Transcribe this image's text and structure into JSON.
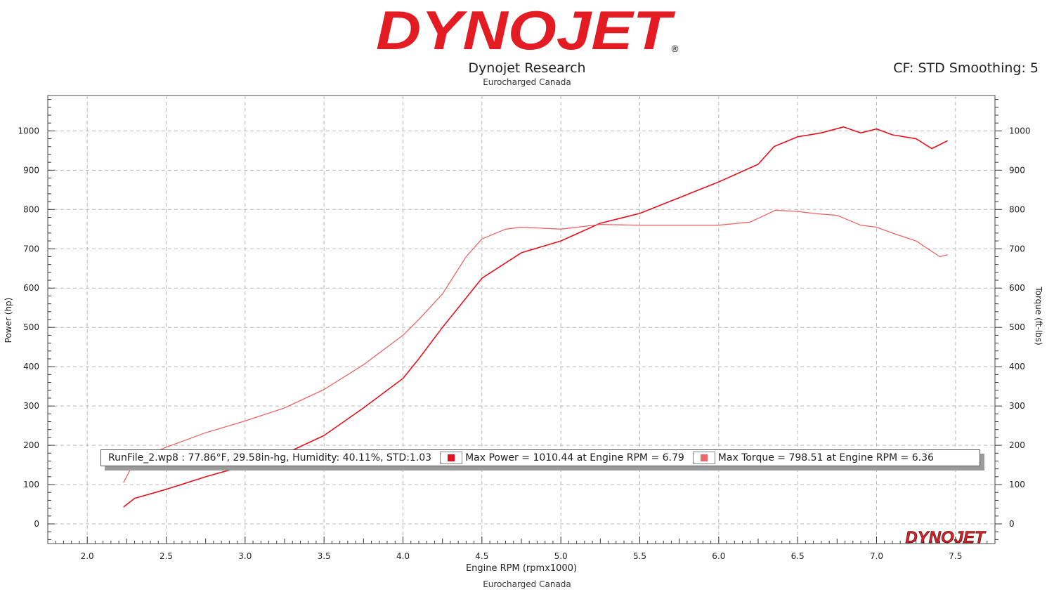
{
  "header": {
    "brand": "DYNOJET",
    "title": "Dynojet Research",
    "subtitle": "Eurocharged Canada",
    "cf_info": "CF: STD Smoothing: 5"
  },
  "footer": {
    "text": "Eurocharged Canada"
  },
  "legend": {
    "run_info": "RunFile_2.wp8 : 77.86°F, 29.58in-hg, Humidity: 40.11%, STD:1.03",
    "power_text": "Max Power = 1010.44 at Engine RPM = 6.79",
    "torque_text": "Max Torque = 798.51 at Engine RPM = 6.36"
  },
  "colors": {
    "power": "#e8101b",
    "torque": "#f06565",
    "brand_red": "#e31b23"
  },
  "chart_data": {
    "type": "line",
    "xlabel": "Engine RPM (rpmx1000)",
    "ylabel_left": "Power (hp)",
    "ylabel_right": "Torque (ft-lbs)",
    "xlim": [
      1.75,
      7.75
    ],
    "ylim": [
      -50,
      1090
    ],
    "x_ticks": [
      "2.0",
      "2.5",
      "3.0",
      "3.5",
      "4.0",
      "4.5",
      "5.0",
      "5.5",
      "6.0",
      "6.5",
      "7.0",
      "7.5"
    ],
    "y_ticks": [
      "0",
      "100",
      "200",
      "300",
      "400",
      "500",
      "600",
      "700",
      "800",
      "900",
      "1000"
    ],
    "grid": true,
    "series": [
      {
        "name": "Max Power",
        "axis": "left",
        "x": [
          2.23,
          2.3,
          2.5,
          2.75,
          3.0,
          3.25,
          3.5,
          3.75,
          4.0,
          4.1,
          4.25,
          4.4,
          4.5,
          4.75,
          5.0,
          5.25,
          5.5,
          5.75,
          6.0,
          6.25,
          6.35,
          6.5,
          6.65,
          6.79,
          6.9,
          7.0,
          7.1,
          7.25,
          7.35,
          7.45
        ],
        "values": [
          43,
          65,
          88,
          120,
          148,
          178,
          225,
          295,
          370,
          420,
          500,
          575,
          625,
          690,
          720,
          765,
          790,
          830,
          870,
          915,
          960,
          985,
          995,
          1010,
          995,
          1005,
          990,
          980,
          955,
          975
        ]
      },
      {
        "name": "Max Torque",
        "axis": "right",
        "x": [
          2.23,
          2.3,
          2.5,
          2.75,
          3.0,
          3.25,
          3.5,
          3.75,
          4.0,
          4.1,
          4.25,
          4.4,
          4.5,
          4.65,
          4.75,
          5.0,
          5.25,
          5.5,
          5.75,
          6.0,
          6.2,
          6.36,
          6.5,
          6.6,
          6.75,
          6.9,
          7.0,
          7.1,
          7.25,
          7.4,
          7.45
        ],
        "values": [
          105,
          160,
          195,
          232,
          262,
          295,
          342,
          405,
          480,
          520,
          585,
          680,
          725,
          750,
          755,
          750,
          762,
          760,
          760,
          760,
          768,
          798,
          795,
          790,
          785,
          760,
          755,
          740,
          720,
          680,
          685
        ]
      }
    ]
  }
}
